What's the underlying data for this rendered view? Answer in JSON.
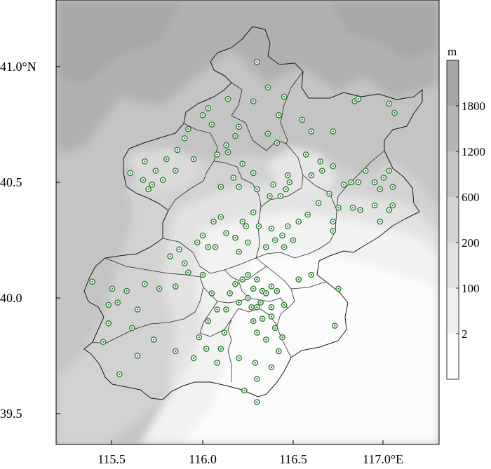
{
  "map": {
    "x_ticks": [
      "115.5",
      "116.0",
      "116.5",
      "117.0°E"
    ],
    "y_ticks": [
      "41.0°N",
      "40.5",
      "40.0",
      "39.5"
    ],
    "legend": {
      "unit": "m",
      "levels": [
        "1800",
        "1200",
        "600",
        "200",
        "100",
        "2"
      ],
      "colors": [
        "#a6a6a6",
        "#b5b5b5",
        "#c4c4c4",
        "#d4d4d4",
        "#e2e2e2",
        "#f0f0f0",
        "#fdfdfd"
      ]
    }
  },
  "stations": [
    [
      116.3,
      41.02
    ],
    [
      116.36,
      40.91
    ],
    [
      116.28,
      40.85
    ],
    [
      116.14,
      40.86
    ],
    [
      116.45,
      40.87
    ],
    [
      116.42,
      40.79
    ],
    [
      116.36,
      40.71
    ],
    [
      116.41,
      40.67
    ],
    [
      116.55,
      40.77
    ],
    [
      116.6,
      40.72
    ],
    [
      116.57,
      40.62
    ],
    [
      116.65,
      40.59
    ],
    [
      116.72,
      40.72
    ],
    [
      116.84,
      40.85
    ],
    [
      116.86,
      40.86
    ],
    [
      117.03,
      40.84
    ],
    [
      117.06,
      40.8
    ],
    [
      116.03,
      40.82
    ],
    [
      116.05,
      40.75
    ],
    [
      116.0,
      40.79
    ],
    [
      115.92,
      40.73
    ],
    [
      115.9,
      40.69
    ],
    [
      115.86,
      40.64
    ],
    [
      115.8,
      40.6
    ],
    [
      115.74,
      40.55
    ],
    [
      115.68,
      40.59
    ],
    [
      115.6,
      40.54
    ],
    [
      115.67,
      40.51
    ],
    [
      115.72,
      40.49
    ],
    [
      115.78,
      40.51
    ],
    [
      115.7,
      40.47
    ],
    [
      115.85,
      40.55
    ],
    [
      115.95,
      40.6
    ],
    [
      116.08,
      40.62
    ],
    [
      116.14,
      40.63
    ],
    [
      116.18,
      40.7
    ],
    [
      116.2,
      40.74
    ],
    [
      116.13,
      40.66
    ],
    [
      116.22,
      40.58
    ],
    [
      116.17,
      40.52
    ],
    [
      116.1,
      40.48
    ],
    [
      116.2,
      40.48
    ],
    [
      116.28,
      40.54
    ],
    [
      116.3,
      40.47
    ],
    [
      116.37,
      40.44
    ],
    [
      116.43,
      40.44
    ],
    [
      116.46,
      40.47
    ],
    [
      116.48,
      40.5
    ],
    [
      116.39,
      40.49
    ],
    [
      116.47,
      40.53
    ],
    [
      116.6,
      40.53
    ],
    [
      116.66,
      40.55
    ],
    [
      116.72,
      40.57
    ],
    [
      116.78,
      40.49
    ],
    [
      116.82,
      40.5
    ],
    [
      116.86,
      40.5
    ],
    [
      116.9,
      40.55
    ],
    [
      116.95,
      40.5
    ],
    [
      116.98,
      40.47
    ],
    [
      117.0,
      40.52
    ],
    [
      117.03,
      40.55
    ],
    [
      117.05,
      40.48
    ],
    [
      117.05,
      40.4
    ],
    [
      117.03,
      40.38
    ],
    [
      116.98,
      40.33
    ],
    [
      116.95,
      40.4
    ],
    [
      116.87,
      40.38
    ],
    [
      116.83,
      40.39
    ],
    [
      116.75,
      40.39
    ],
    [
      116.72,
      40.29
    ],
    [
      116.72,
      40.33
    ],
    [
      116.7,
      40.45
    ],
    [
      116.64,
      40.41
    ],
    [
      116.58,
      40.36
    ],
    [
      116.53,
      40.33
    ],
    [
      116.47,
      40.31
    ],
    [
      116.44,
      40.27
    ],
    [
      116.38,
      40.3
    ],
    [
      116.4,
      40.25
    ],
    [
      116.45,
      40.22
    ],
    [
      116.5,
      40.25
    ],
    [
      116.35,
      40.22
    ],
    [
      116.22,
      40.33
    ],
    [
      116.24,
      40.31
    ],
    [
      116.28,
      40.37
    ],
    [
      116.31,
      40.31
    ],
    [
      116.25,
      40.24
    ],
    [
      116.18,
      40.26
    ],
    [
      116.13,
      40.28
    ],
    [
      116.06,
      40.33
    ],
    [
      116.1,
      40.35
    ],
    [
      116.07,
      40.22
    ],
    [
      116.03,
      40.22
    ],
    [
      116.0,
      40.27
    ],
    [
      115.97,
      40.24
    ],
    [
      115.9,
      40.15
    ],
    [
      115.87,
      40.21
    ],
    [
      115.82,
      40.18
    ],
    [
      115.92,
      40.11
    ],
    [
      115.85,
      40.05
    ],
    [
      115.76,
      40.04
    ],
    [
      115.68,
      40.06
    ],
    [
      115.58,
      40.03
    ],
    [
      115.64,
      39.95
    ],
    [
      115.5,
      40.04
    ],
    [
      115.48,
      39.97
    ],
    [
      115.39,
      40.07
    ],
    [
      115.53,
      39.98
    ],
    [
      115.48,
      39.89
    ],
    [
      115.45,
      39.81
    ],
    [
      115.61,
      39.87
    ],
    [
      115.64,
      39.75
    ],
    [
      115.73,
      39.82
    ],
    [
      115.54,
      39.67
    ],
    [
      115.85,
      39.77
    ],
    [
      115.95,
      39.74
    ],
    [
      115.98,
      39.83
    ],
    [
      116.03,
      39.9
    ],
    [
      116.08,
      39.95
    ],
    [
      116.05,
      40.02
    ],
    [
      116.0,
      40.1
    ],
    [
      116.02,
      39.78
    ],
    [
      116.08,
      39.72
    ],
    [
      116.1,
      39.78
    ],
    [
      116.12,
      39.85
    ],
    [
      116.13,
      39.95
    ],
    [
      116.15,
      40.02
    ],
    [
      116.18,
      40.06
    ],
    [
      116.2,
      39.98
    ],
    [
      116.22,
      40.08
    ],
    [
      116.25,
      40.0
    ],
    [
      116.28,
      40.04
    ],
    [
      116.3,
      40.08
    ],
    [
      116.33,
      40.03
    ],
    [
      116.35,
      40.02
    ],
    [
      116.38,
      40.05
    ],
    [
      116.27,
      39.96
    ],
    [
      116.3,
      39.96
    ],
    [
      116.32,
      39.98
    ],
    [
      116.38,
      39.96
    ],
    [
      116.41,
      40.03
    ],
    [
      116.45,
      39.97
    ],
    [
      116.3,
      39.85
    ],
    [
      116.28,
      39.9
    ],
    [
      116.33,
      39.91
    ],
    [
      116.38,
      39.92
    ],
    [
      116.44,
      39.83
    ],
    [
      116.42,
      39.77
    ],
    [
      116.38,
      39.7
    ],
    [
      116.3,
      39.65
    ],
    [
      116.29,
      39.72
    ],
    [
      116.2,
      39.74
    ],
    [
      116.3,
      39.55
    ],
    [
      116.23,
      39.6
    ],
    [
      116.25,
      40.1
    ],
    [
      116.2,
      40.2
    ],
    [
      116.53,
      40.08
    ],
    [
      116.6,
      40.1
    ],
    [
      116.73,
      39.88
    ],
    [
      116.75,
      40.04
    ],
    [
      116.4,
      39.87
    ],
    [
      116.35,
      39.82
    ]
  ]
}
